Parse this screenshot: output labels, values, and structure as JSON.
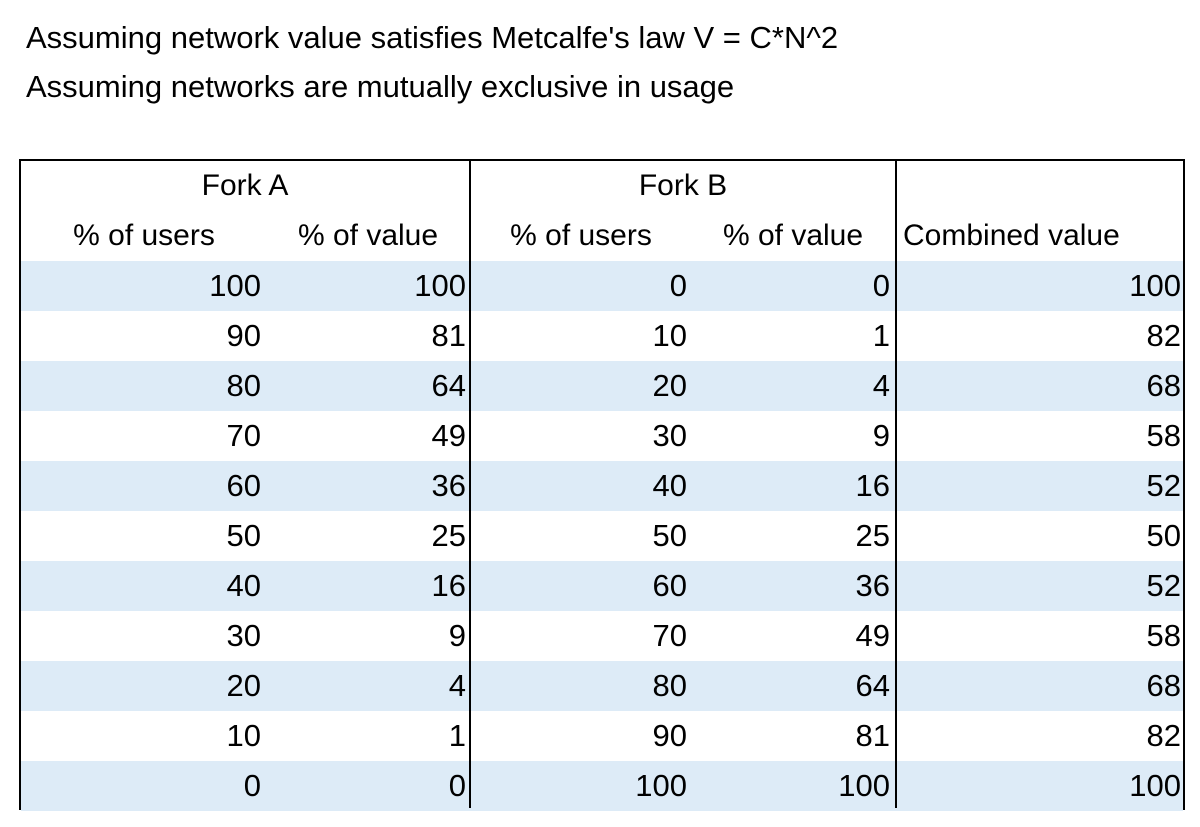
{
  "notes": {
    "line1": "Assuming network value satisfies Metcalfe's law V = C*N^2",
    "line2": "Assuming networks are mutually exclusive in usage"
  },
  "table": {
    "groups": {
      "fork_a": "Fork A",
      "fork_b": "Fork B"
    },
    "columns": {
      "a_users": "% of users",
      "a_value": "% of value",
      "b_users": "% of users",
      "b_value": "% of value",
      "combined": "Combined value"
    },
    "rows": [
      [
        "100",
        "100",
        "0",
        "0",
        "100"
      ],
      [
        "90",
        "81",
        "10",
        "1",
        "82"
      ],
      [
        "80",
        "64",
        "20",
        "4",
        "68"
      ],
      [
        "70",
        "49",
        "30",
        "9",
        "58"
      ],
      [
        "60",
        "36",
        "40",
        "16",
        "52"
      ],
      [
        "50",
        "25",
        "50",
        "25",
        "50"
      ],
      [
        "40",
        "16",
        "60",
        "36",
        "52"
      ],
      [
        "30",
        "9",
        "70",
        "49",
        "58"
      ],
      [
        "20",
        "4",
        "80",
        "64",
        "68"
      ],
      [
        "10",
        "1",
        "90",
        "81",
        "82"
      ],
      [
        "0",
        "0",
        "100",
        "100",
        "100"
      ]
    ],
    "stripe_color": "#ddebf7"
  }
}
